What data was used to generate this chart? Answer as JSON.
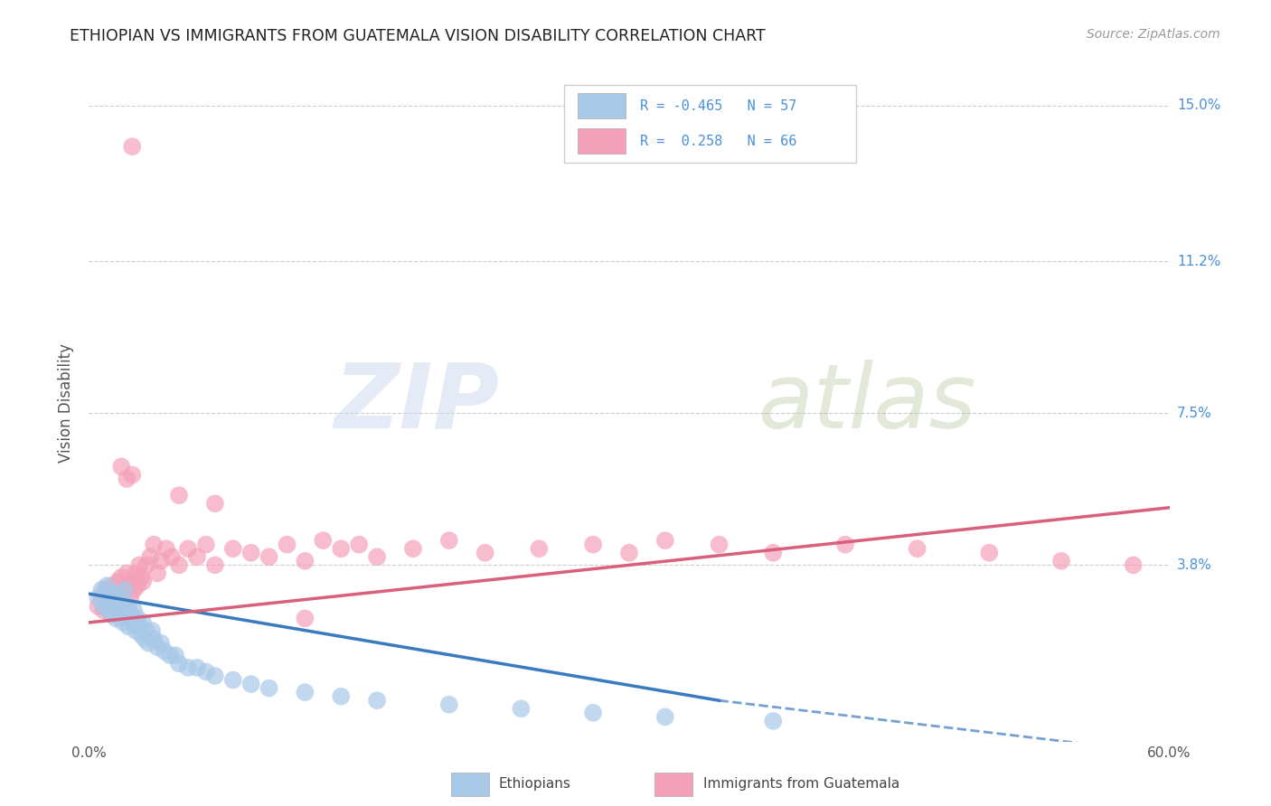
{
  "title": "ETHIOPIAN VS IMMIGRANTS FROM GUATEMALA VISION DISABILITY CORRELATION CHART",
  "source": "Source: ZipAtlas.com",
  "ylabel": "Vision Disability",
  "xlim": [
    0.0,
    0.6
  ],
  "ylim": [
    -0.005,
    0.16
  ],
  "yticks": [
    0.038,
    0.075,
    0.112,
    0.15
  ],
  "ytick_labels": [
    "3.8%",
    "7.5%",
    "11.2%",
    "15.0%"
  ],
  "xtick_labels": [
    "0.0%",
    "60.0%"
  ],
  "xticks": [
    0.0,
    0.6
  ],
  "r_ethiopian": -0.465,
  "n_ethiopian": 57,
  "r_guatemala": 0.258,
  "n_guatemala": 66,
  "ethiopian_color": "#a8c8e8",
  "guatemala_color": "#f4a0b8",
  "trend_ethiopian_color": "#3a7abf",
  "trend_guatemala_color": "#d9607a",
  "watermark_zip": "ZIP",
  "watermark_atlas": "atlas",
  "background_color": "#ffffff",
  "ethiopian_scatter_x": [
    0.005,
    0.007,
    0.008,
    0.009,
    0.01,
    0.01,
    0.011,
    0.012,
    0.013,
    0.013,
    0.014,
    0.015,
    0.015,
    0.016,
    0.017,
    0.018,
    0.019,
    0.02,
    0.02,
    0.021,
    0.022,
    0.022,
    0.023,
    0.024,
    0.025,
    0.025,
    0.026,
    0.027,
    0.028,
    0.029,
    0.03,
    0.031,
    0.032,
    0.033,
    0.035,
    0.036,
    0.038,
    0.04,
    0.042,
    0.045,
    0.048,
    0.05,
    0.055,
    0.06,
    0.065,
    0.07,
    0.08,
    0.09,
    0.1,
    0.12,
    0.14,
    0.16,
    0.2,
    0.24,
    0.28,
    0.32,
    0.38
  ],
  "ethiopian_scatter_y": [
    0.03,
    0.032,
    0.028,
    0.031,
    0.029,
    0.033,
    0.027,
    0.031,
    0.028,
    0.026,
    0.03,
    0.028,
    0.025,
    0.031,
    0.027,
    0.029,
    0.024,
    0.027,
    0.032,
    0.025,
    0.028,
    0.023,
    0.026,
    0.025,
    0.024,
    0.027,
    0.022,
    0.025,
    0.023,
    0.021,
    0.024,
    0.02,
    0.022,
    0.019,
    0.022,
    0.02,
    0.018,
    0.019,
    0.017,
    0.016,
    0.016,
    0.014,
    0.013,
    0.013,
    0.012,
    0.011,
    0.01,
    0.009,
    0.008,
    0.007,
    0.006,
    0.005,
    0.004,
    0.003,
    0.002,
    0.001,
    0.0
  ],
  "guatemala_scatter_x": [
    0.005,
    0.007,
    0.008,
    0.009,
    0.01,
    0.011,
    0.012,
    0.013,
    0.014,
    0.015,
    0.016,
    0.017,
    0.018,
    0.019,
    0.02,
    0.021,
    0.022,
    0.023,
    0.024,
    0.025,
    0.026,
    0.027,
    0.028,
    0.029,
    0.03,
    0.032,
    0.034,
    0.036,
    0.038,
    0.04,
    0.043,
    0.046,
    0.05,
    0.055,
    0.06,
    0.065,
    0.07,
    0.08,
    0.09,
    0.1,
    0.11,
    0.12,
    0.13,
    0.14,
    0.15,
    0.16,
    0.18,
    0.2,
    0.22,
    0.25,
    0.28,
    0.3,
    0.32,
    0.35,
    0.38,
    0.42,
    0.46,
    0.5,
    0.54,
    0.58,
    0.024,
    0.021,
    0.018,
    0.05,
    0.07,
    0.12
  ],
  "guatemala_scatter_y": [
    0.028,
    0.03,
    0.027,
    0.032,
    0.029,
    0.031,
    0.026,
    0.033,
    0.03,
    0.028,
    0.034,
    0.031,
    0.035,
    0.029,
    0.032,
    0.036,
    0.033,
    0.03,
    0.034,
    0.032,
    0.036,
    0.033,
    0.038,
    0.035,
    0.034,
    0.038,
    0.04,
    0.043,
    0.036,
    0.039,
    0.042,
    0.04,
    0.038,
    0.042,
    0.04,
    0.043,
    0.038,
    0.042,
    0.041,
    0.04,
    0.043,
    0.039,
    0.044,
    0.042,
    0.043,
    0.04,
    0.042,
    0.044,
    0.041,
    0.042,
    0.043,
    0.041,
    0.044,
    0.043,
    0.041,
    0.043,
    0.042,
    0.041,
    0.039,
    0.038,
    0.06,
    0.059,
    0.062,
    0.055,
    0.053,
    0.025
  ],
  "guatemala_high_y": [
    0.14
  ],
  "guatemala_high_x": [
    0.024
  ]
}
